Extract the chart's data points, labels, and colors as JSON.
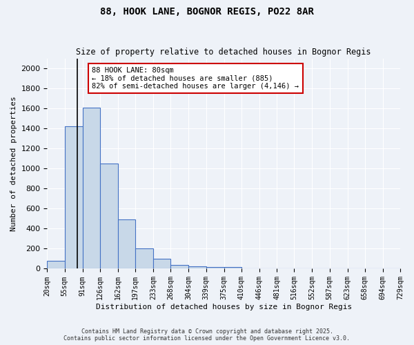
{
  "title1": "88, HOOK LANE, BOGNOR REGIS, PO22 8AR",
  "title2": "Size of property relative to detached houses in Bognor Regis",
  "xlabel": "Distribution of detached houses by size in Bognor Regis",
  "ylabel": "Number of detached properties",
  "bin_edges": [
    20,
    55,
    91,
    126,
    162,
    197,
    233,
    268,
    304,
    339,
    375,
    410,
    446,
    481,
    516,
    552,
    587,
    623,
    658,
    694,
    729
  ],
  "bar_heights": [
    80,
    1420,
    1610,
    1050,
    490,
    200,
    100,
    35,
    25,
    15,
    15,
    0,
    0,
    0,
    0,
    0,
    0,
    0,
    0,
    0
  ],
  "bar_color": "#c8d8e8",
  "bar_edgecolor": "#4472c4",
  "property_size": 80,
  "annotation_title": "88 HOOK LANE: 80sqm",
  "annotation_line1": "← 18% of detached houses are smaller (885)",
  "annotation_line2": "82% of semi-detached houses are larger (4,146) →",
  "annotation_box_color": "#ffffff",
  "annotation_box_edgecolor": "#cc0000",
  "vline_color": "#000000",
  "ylim": [
    0,
    2100
  ],
  "yticks": [
    0,
    200,
    400,
    600,
    800,
    1000,
    1200,
    1400,
    1600,
    1800,
    2000
  ],
  "background_color": "#eef2f8",
  "grid_color": "#ffffff",
  "footer1": "Contains HM Land Registry data © Crown copyright and database right 2025.",
  "footer2": "Contains public sector information licensed under the Open Government Licence v3.0."
}
